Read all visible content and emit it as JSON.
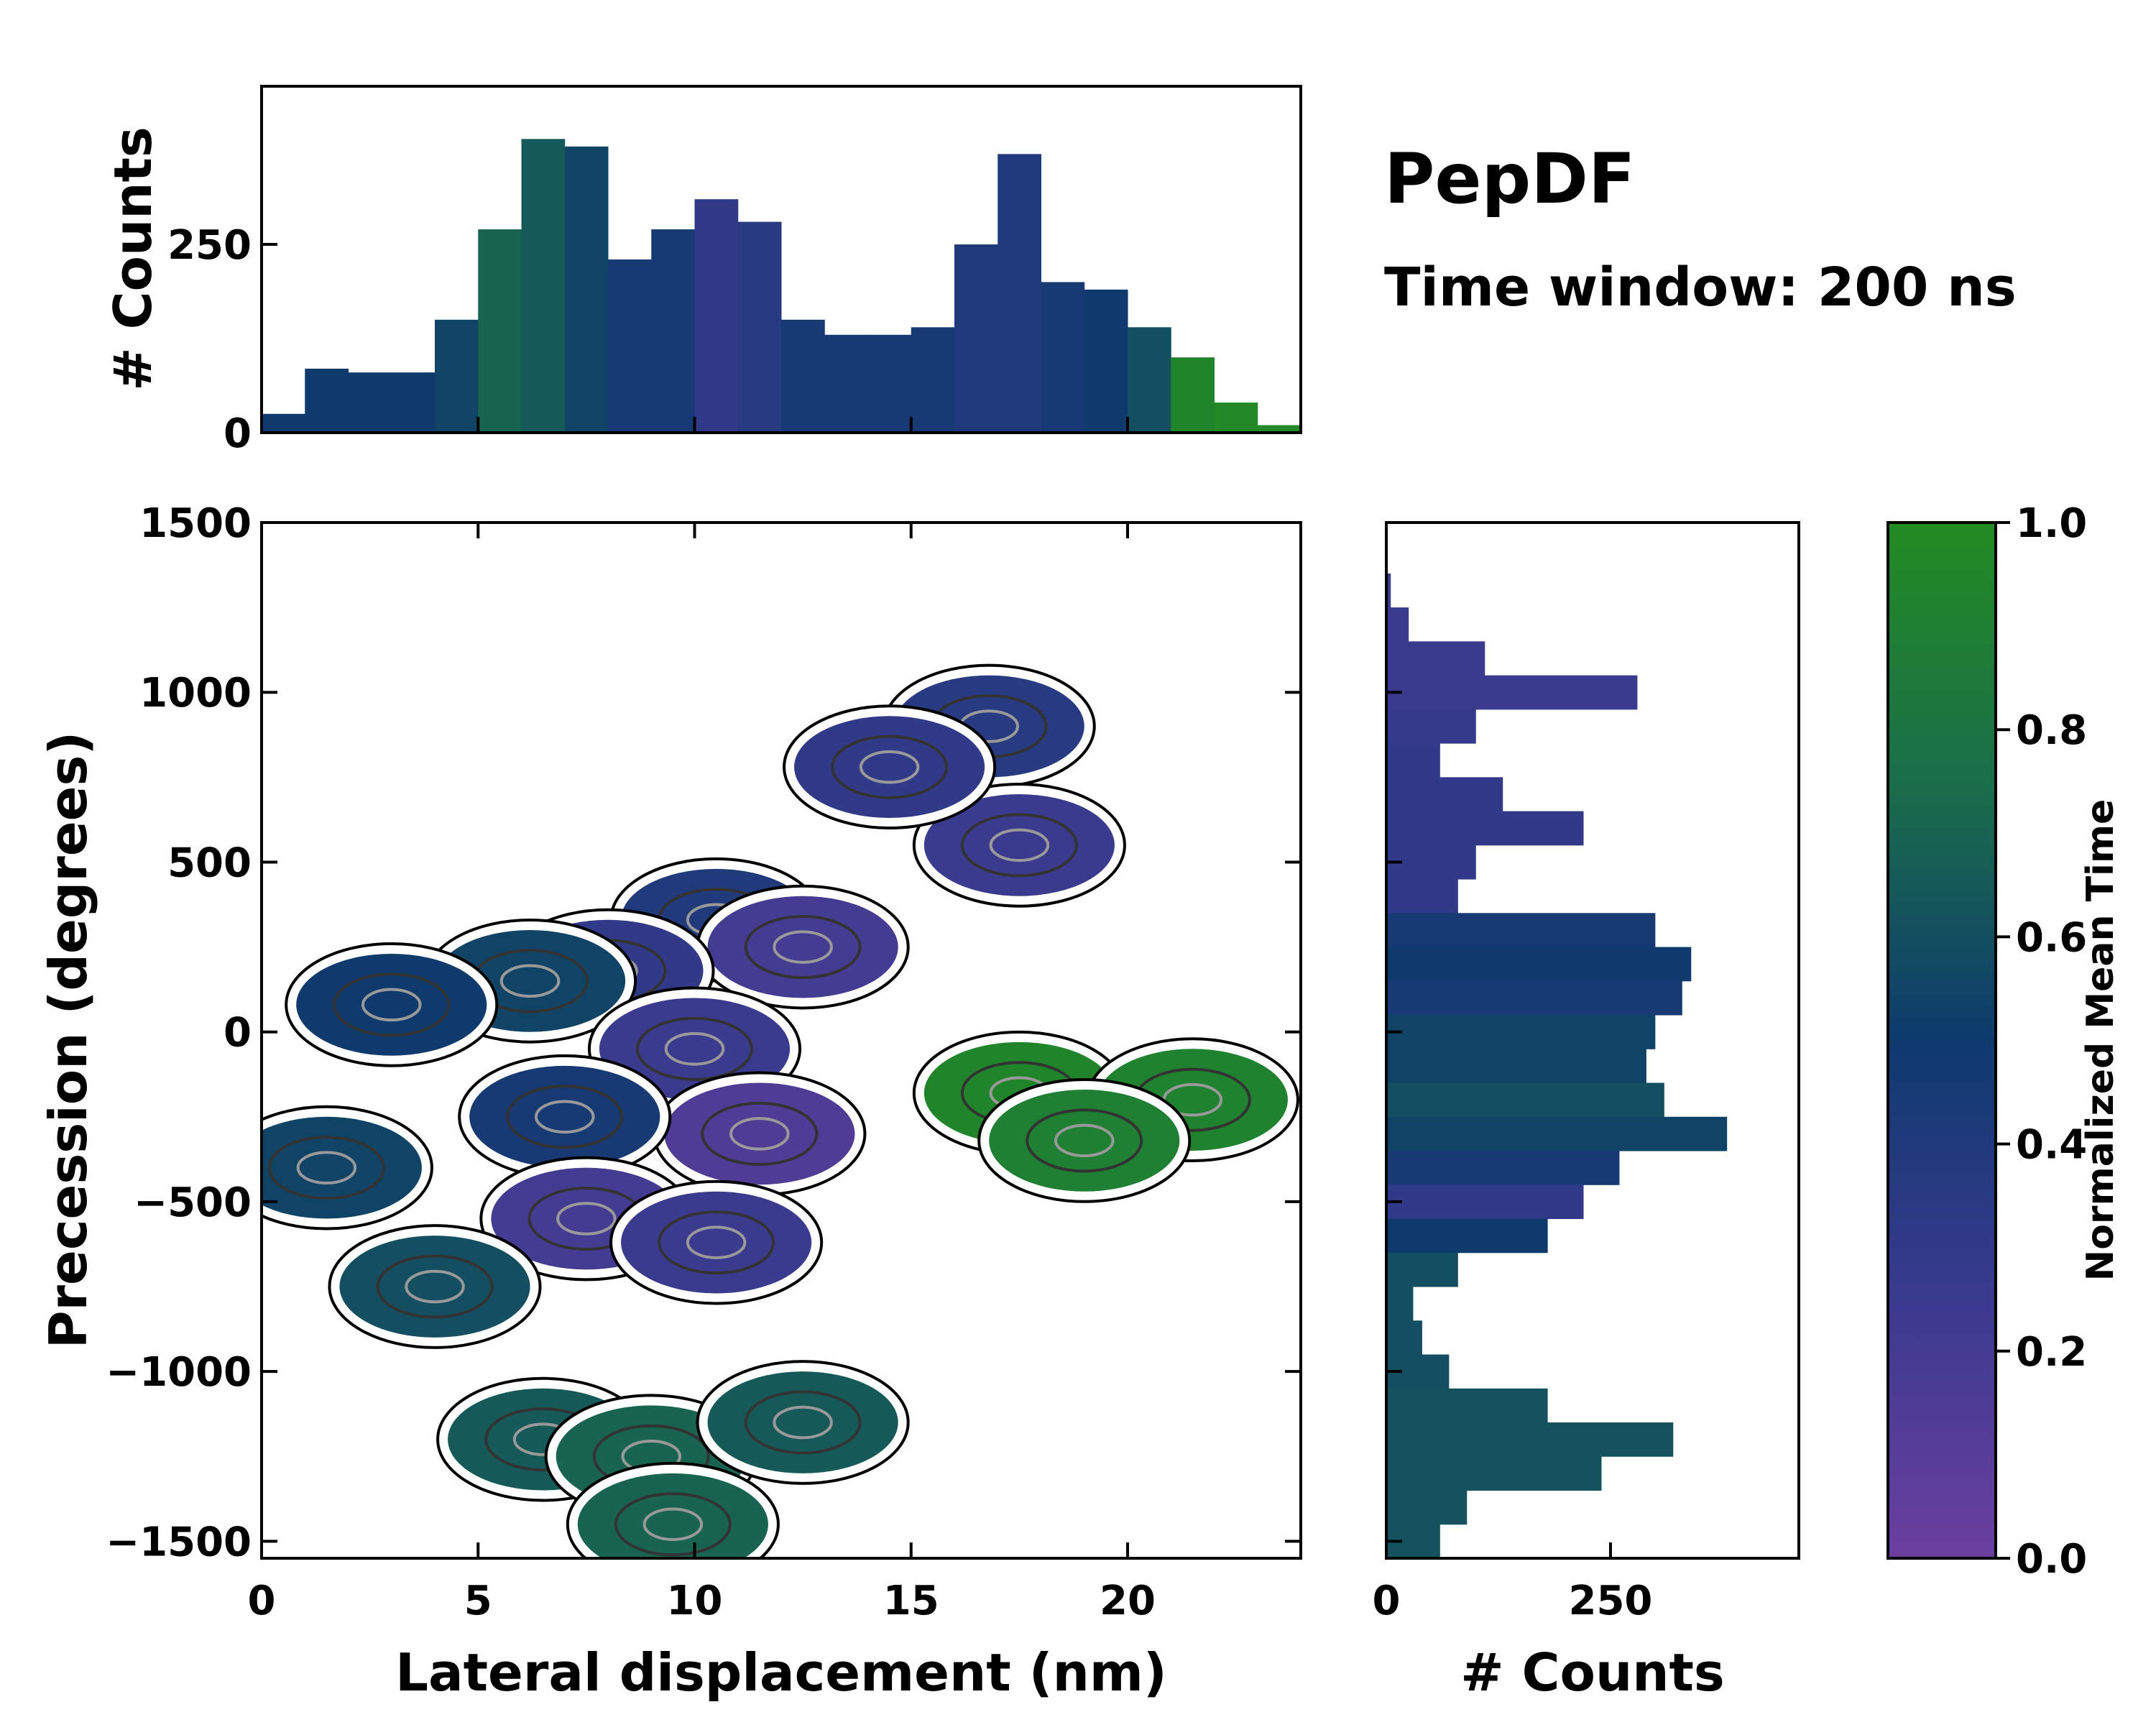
{
  "figure": {
    "title": "PepDF",
    "subtitle": "Time window: 200 ns"
  },
  "chart_data": [
    {
      "id": "main",
      "type": "heatmap",
      "description_of_marks": "2D histogram of trajectory with color = normalized mean time and density contour lines",
      "xlabel": "Lateral displacement (nm)",
      "ylabel": "Precession (degrees)",
      "xlim": [
        0,
        24
      ],
      "ylim": [
        -1550,
        1500
      ],
      "xticks": [
        0,
        5,
        10,
        15,
        20
      ],
      "xtick_labels": [
        "0",
        "5",
        "10",
        "15",
        "20"
      ],
      "yticks": [
        -1500,
        -1000,
        -500,
        0,
        500,
        1000,
        1500
      ],
      "ytick_labels": [
        "−1500",
        "−1000",
        "−500",
        "0",
        "500",
        "1000",
        "1500"
      ],
      "clusters": [
        {
          "x": 16.8,
          "y": 900,
          "value": 0.35
        },
        {
          "x": 17.5,
          "y": 550,
          "value": 0.25
        },
        {
          "x": 14.5,
          "y": 780,
          "value": 0.3
        },
        {
          "x": 10.5,
          "y": 330,
          "value": 0.4
        },
        {
          "x": 12.5,
          "y": 250,
          "value": 0.2
        },
        {
          "x": 8.0,
          "y": 180,
          "value": 0.3
        },
        {
          "x": 6.2,
          "y": 150,
          "value": 0.55
        },
        {
          "x": 3.0,
          "y": 80,
          "value": 0.5
        },
        {
          "x": 10.0,
          "y": -50,
          "value": 0.25
        },
        {
          "x": 11.5,
          "y": -300,
          "value": 0.15
        },
        {
          "x": 7.0,
          "y": -250,
          "value": 0.45
        },
        {
          "x": 17.5,
          "y": -180,
          "value": 0.95
        },
        {
          "x": 21.5,
          "y": -200,
          "value": 0.92
        },
        {
          "x": 19.0,
          "y": -320,
          "value": 0.9
        },
        {
          "x": 1.5,
          "y": -400,
          "value": 0.55
        },
        {
          "x": 7.5,
          "y": -550,
          "value": 0.2
        },
        {
          "x": 10.5,
          "y": -620,
          "value": 0.25
        },
        {
          "x": 4.0,
          "y": -750,
          "value": 0.6
        },
        {
          "x": 6.5,
          "y": -1200,
          "value": 0.65
        },
        {
          "x": 9.0,
          "y": -1250,
          "value": 0.7
        },
        {
          "x": 12.5,
          "y": -1150,
          "value": 0.65
        },
        {
          "x": 9.5,
          "y": -1450,
          "value": 0.7
        }
      ]
    },
    {
      "id": "top",
      "type": "bar",
      "ylabel": "# Counts",
      "xlim": [
        0,
        24
      ],
      "ylim": [
        0,
        460
      ],
      "yticks": [
        0,
        250
      ],
      "ytick_labels": [
        "0",
        "250"
      ],
      "bin_centers": [
        0.5,
        1.5,
        2.5,
        3.5,
        4.5,
        5.5,
        6.5,
        7.5,
        8.5,
        9.5,
        10.5,
        11.5,
        12.5,
        13.5,
        14.5,
        15.5,
        16.5,
        17.5,
        18.5,
        19.5,
        20.5,
        21.5,
        22.5,
        23.5
      ],
      "values": [
        25,
        85,
        80,
        80,
        150,
        270,
        390,
        380,
        230,
        270,
        310,
        280,
        150,
        130,
        130,
        140,
        250,
        370,
        200,
        190,
        140,
        100,
        40,
        10
      ],
      "color_values": [
        0.5,
        0.5,
        0.5,
        0.5,
        0.55,
        0.7,
        0.65,
        0.55,
        0.45,
        0.45,
        0.3,
        0.35,
        0.45,
        0.45,
        0.45,
        0.45,
        0.4,
        0.4,
        0.45,
        0.5,
        0.6,
        0.95,
        0.98,
        0.98
      ]
    },
    {
      "id": "right",
      "type": "bar",
      "orientation": "horizontal",
      "xlabel": "# Counts",
      "xlim": [
        0,
        460
      ],
      "ylim": [
        -1550,
        1500
      ],
      "xticks": [
        0,
        250
      ],
      "xtick_labels": [
        "0",
        "250"
      ],
      "bin_centers": [
        1300,
        1200,
        1100,
        1000,
        900,
        800,
        700,
        600,
        500,
        400,
        300,
        200,
        100,
        0,
        -100,
        -200,
        -300,
        -400,
        -500,
        -600,
        -700,
        -800,
        -900,
        -1000,
        -1100,
        -1200,
        -1300,
        -1400,
        -1500
      ],
      "values": [
        5,
        25,
        110,
        280,
        100,
        60,
        130,
        220,
        100,
        80,
        300,
        340,
        330,
        300,
        290,
        310,
        380,
        260,
        220,
        180,
        80,
        30,
        40,
        70,
        180,
        320,
        240,
        90,
        60
      ],
      "color_values": [
        0.25,
        0.25,
        0.25,
        0.25,
        0.28,
        0.3,
        0.3,
        0.3,
        0.3,
        0.3,
        0.45,
        0.5,
        0.45,
        0.55,
        0.55,
        0.6,
        0.55,
        0.45,
        0.3,
        0.5,
        0.6,
        0.6,
        0.6,
        0.6,
        0.62,
        0.62,
        0.62,
        0.62,
        0.62
      ]
    },
    {
      "id": "colorbar",
      "type": "colorbar",
      "label": "Normalized Mean Time",
      "range": [
        0,
        1
      ],
      "ticks": [
        0.0,
        0.2,
        0.4,
        0.6,
        0.8,
        1.0
      ],
      "tick_labels": [
        "0.0",
        "0.2",
        "0.4",
        "0.6",
        "0.8",
        "1.0"
      ],
      "colormap_stops": [
        {
          "value": 0.0,
          "color": "#6b3fa0"
        },
        {
          "value": 0.25,
          "color": "#3a3a8f"
        },
        {
          "value": 0.5,
          "color": "#0e3a6e"
        },
        {
          "value": 0.75,
          "color": "#1a6e4a"
        },
        {
          "value": 1.0,
          "color": "#228b22"
        }
      ]
    }
  ]
}
